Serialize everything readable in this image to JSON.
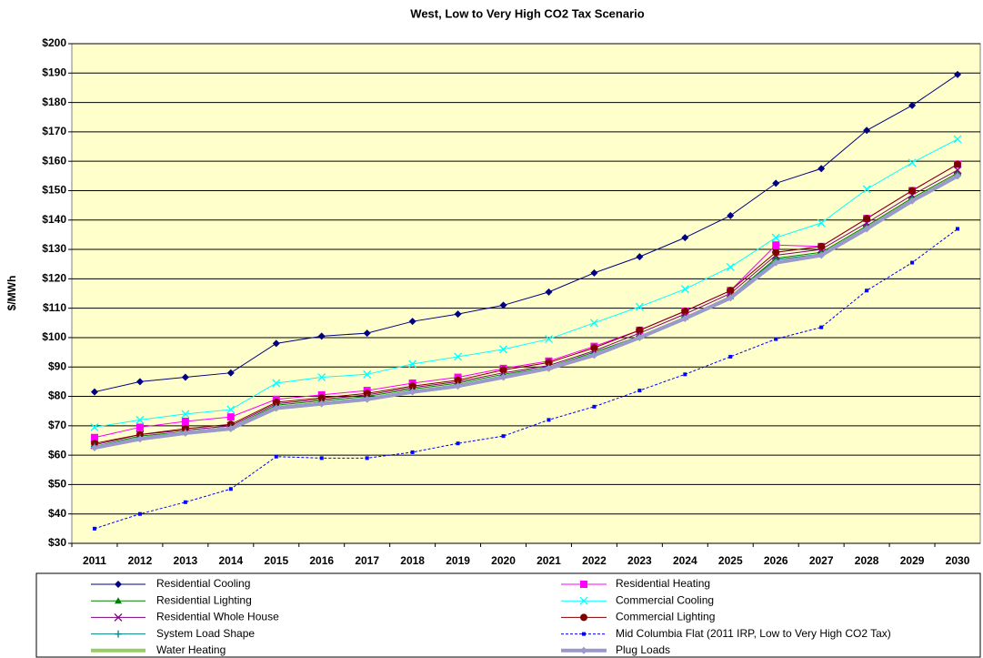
{
  "chart_data": {
    "type": "line",
    "title": "West, Low to Very High CO2 Tax Scenario",
    "y_label": "$/MWh",
    "categories": [
      "2011",
      "2012",
      "2013",
      "2014",
      "2015",
      "2016",
      "2017",
      "2018",
      "2019",
      "2020",
      "2021",
      "2022",
      "2023",
      "2024",
      "2025",
      "2026",
      "2027",
      "2028",
      "2029",
      "2030"
    ],
    "ylim": [
      30,
      200
    ],
    "yticks": [
      {
        "value": 30,
        "label": "$30"
      },
      {
        "value": 40,
        "label": "$40"
      },
      {
        "value": 50,
        "label": "$50"
      },
      {
        "value": 60,
        "label": "$60"
      },
      {
        "value": 70,
        "label": "$70"
      },
      {
        "value": 80,
        "label": "$80"
      },
      {
        "value": 90,
        "label": "$90"
      },
      {
        "value": 100,
        "label": "$100"
      },
      {
        "value": 110,
        "label": "$110"
      },
      {
        "value": 120,
        "label": "$120"
      },
      {
        "value": 130,
        "label": "$130"
      },
      {
        "value": 140,
        "label": "$140"
      },
      {
        "value": 150,
        "label": "$150"
      },
      {
        "value": 160,
        "label": "$160"
      },
      {
        "value": 170,
        "label": "$170"
      },
      {
        "value": 180,
        "label": "$180"
      },
      {
        "value": 190,
        "label": "$190"
      },
      {
        "value": 200,
        "label": "$200"
      }
    ],
    "grid": true,
    "background": "#ffffcc",
    "series": [
      {
        "name": "Residential Cooling",
        "color": "#000080",
        "marker": "diamond",
        "width": 1,
        "values": [
          81.5,
          85,
          86.5,
          88,
          98,
          100.5,
          101.5,
          105.5,
          108,
          111,
          115.5,
          122,
          127.5,
          134,
          141.5,
          152.5,
          157.5,
          170.5,
          179,
          189.5
        ]
      },
      {
        "name": "Residential Heating",
        "color": "#ff00ff",
        "marker": "square",
        "width": 1,
        "values": [
          66,
          69.5,
          71.5,
          73,
          79,
          80.5,
          82,
          84.5,
          86.5,
          89.5,
          92,
          97,
          102.5,
          109,
          116,
          131.5,
          131,
          140.5,
          150,
          159
        ]
      },
      {
        "name": "Residential Lighting",
        "color": "#008000",
        "marker": "triangle",
        "width": 1,
        "values": [
          63,
          66.5,
          68,
          69.5,
          77,
          78.5,
          80,
          82.5,
          84.5,
          87.5,
          90,
          95,
          100.5,
          107,
          114,
          127,
          129,
          138,
          147.5,
          156
        ]
      },
      {
        "name": "Commercial Cooling",
        "color": "#00ffff",
        "marker": "x",
        "width": 1,
        "values": [
          69.5,
          72,
          74,
          75.5,
          84.5,
          86.5,
          87.5,
          91,
          93.5,
          96,
          99.5,
          105,
          110.5,
          116.5,
          124,
          134,
          139,
          150.5,
          159.5,
          167.5
        ]
      },
      {
        "name": "Residential Whole House",
        "color": "#800080",
        "marker": "x",
        "width": 1,
        "values": [
          63.5,
          67,
          68.5,
          70,
          77.5,
          79,
          80.5,
          83,
          85,
          88,
          90.5,
          95.5,
          101.5,
          108,
          115,
          128,
          130,
          139,
          148.5,
          157
        ]
      },
      {
        "name": "Commercial Lighting",
        "color": "#800000",
        "marker": "circle",
        "width": 1,
        "values": [
          64,
          67,
          69,
          70.5,
          78,
          79.5,
          81,
          83.5,
          85.5,
          89,
          91.5,
          96.5,
          102.5,
          109,
          116,
          129,
          131,
          140.5,
          150,
          159
        ]
      },
      {
        "name": "System Load Shape",
        "color": "#008080",
        "marker": "plus",
        "width": 1,
        "values": [
          63,
          66,
          68,
          69.5,
          76.5,
          78,
          79.5,
          82,
          84,
          87,
          90,
          94.5,
          100.5,
          107,
          114,
          126.5,
          128.5,
          137.5,
          147,
          155.5
        ]
      },
      {
        "name": "Mid Columbia Flat (2011 IRP, Low to Very High CO2 Tax)",
        "color": "#0000ff",
        "marker": "smallsquare",
        "width": 1,
        "dash": true,
        "values": [
          35,
          40,
          44,
          48.5,
          59.5,
          59,
          59,
          61,
          64,
          66.5,
          72,
          76.5,
          82,
          87.5,
          93.5,
          99.5,
          103.5,
          116,
          125.5,
          137
        ]
      },
      {
        "name": "Water Heating",
        "color": "#99cc66",
        "marker": "none",
        "width": 4,
        "values": [
          62.5,
          65.5,
          67.5,
          69,
          76,
          77.5,
          79,
          81.5,
          83.5,
          86.5,
          89.5,
          94,
          100,
          106.5,
          113.5,
          125.5,
          128,
          137,
          146.5,
          155
        ]
      },
      {
        "name": "Plug Loads",
        "color": "#9999cc",
        "marker": "diamond",
        "width": 4,
        "values": [
          62.5,
          65.5,
          67.5,
          69,
          76,
          77.5,
          79,
          81.5,
          83.5,
          86.5,
          89.5,
          94,
          100,
          106.5,
          113.5,
          125.5,
          128,
          137,
          146.5,
          155
        ]
      }
    ]
  }
}
